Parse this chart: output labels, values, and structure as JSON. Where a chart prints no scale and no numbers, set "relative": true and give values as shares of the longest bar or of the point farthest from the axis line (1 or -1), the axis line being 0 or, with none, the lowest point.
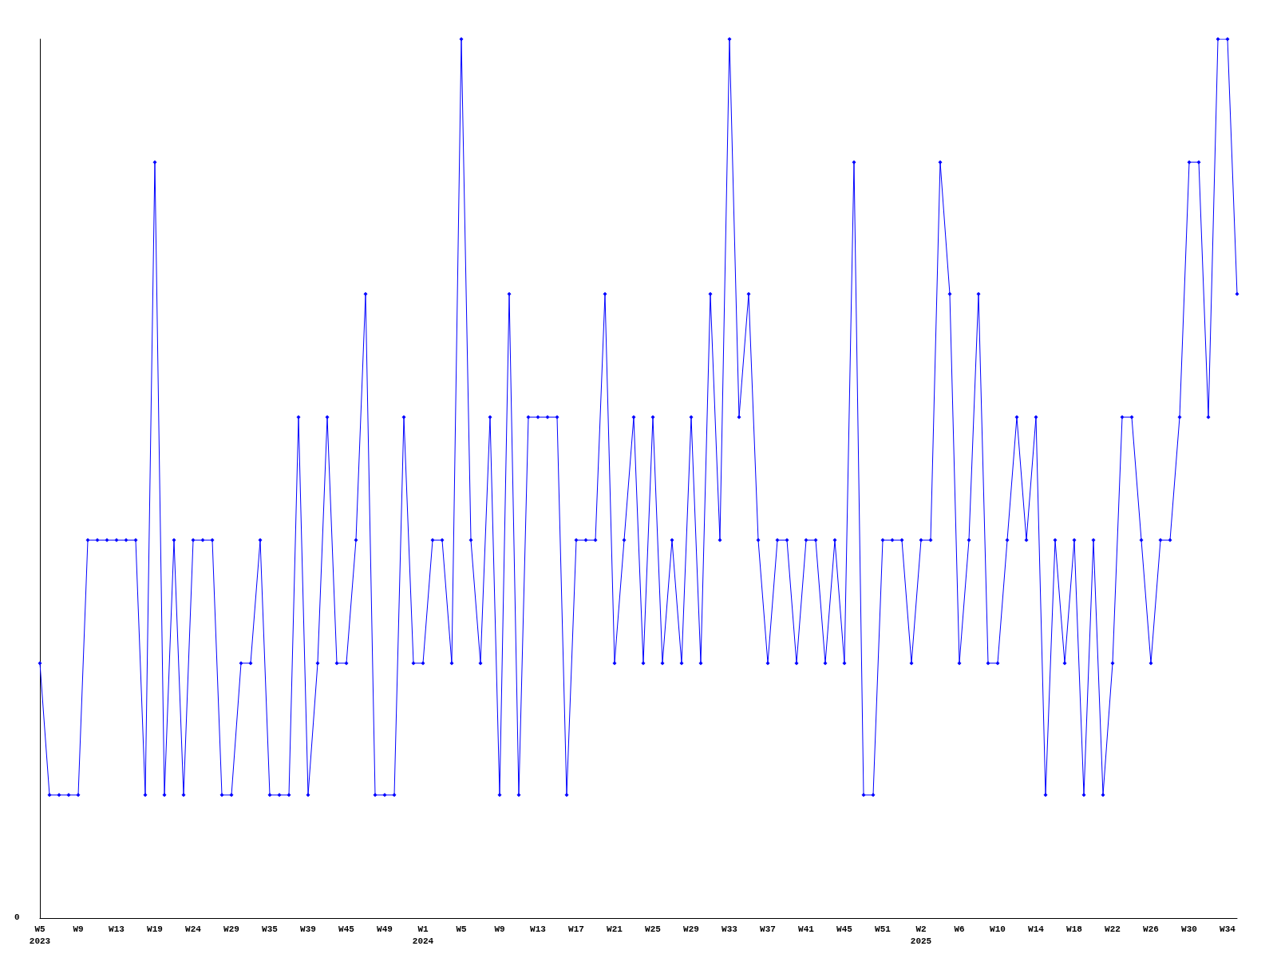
{
  "chart_data": {
    "type": "line",
    "relative": true,
    "categories": [
      "W5\n2023",
      null,
      null,
      null,
      "W9",
      null,
      null,
      null,
      "W13",
      null,
      null,
      null,
      "W19",
      null,
      null,
      null,
      "W24",
      null,
      null,
      null,
      "W29",
      null,
      null,
      null,
      "W35",
      null,
      null,
      null,
      "W39",
      null,
      null,
      null,
      "W45",
      null,
      null,
      null,
      "W49",
      null,
      null,
      null,
      "W1\n2024",
      null,
      null,
      null,
      "W5",
      null,
      null,
      null,
      "W9",
      null,
      null,
      null,
      "W13",
      null,
      null,
      null,
      "W17",
      null,
      null,
      null,
      "W21",
      null,
      null,
      null,
      "W25",
      null,
      null,
      null,
      "W29",
      null,
      null,
      null,
      "W33",
      null,
      null,
      null,
      "W37",
      null,
      null,
      null,
      "W41",
      null,
      null,
      null,
      "W45",
      null,
      null,
      null,
      "W51",
      null,
      null,
      null,
      "W2\n2025",
      null,
      null,
      null,
      "W6",
      null,
      null,
      null,
      "W10",
      null,
      null,
      null,
      "W14",
      null,
      null,
      null,
      "W18",
      null,
      null,
      null,
      "W22",
      null,
      null,
      null,
      "W26",
      null,
      null,
      null,
      "W30",
      null,
      null,
      null,
      "W34",
      null
    ],
    "series": [
      {
        "color": "#0000ff",
        "values": [
          0.29,
          0.14,
          0.14,
          0.14,
          0.14,
          0.43,
          0.43,
          0.43,
          0.43,
          0.43,
          0.43,
          0.14,
          0.86,
          0.14,
          0.43,
          0.14,
          0.43,
          0.43,
          0.43,
          0.14,
          0.14,
          0.29,
          0.29,
          0.43,
          0.14,
          0.14,
          0.14,
          0.57,
          0.14,
          0.29,
          0.57,
          0.29,
          0.29,
          0.43,
          0.71,
          0.14,
          0.14,
          0.14,
          0.57,
          0.29,
          0.29,
          0.43,
          0.43,
          0.29,
          1,
          0.43,
          0.29,
          0.57,
          0.14,
          0.71,
          0.14,
          0.57,
          0.57,
          0.57,
          0.57,
          0.14,
          0.43,
          0.43,
          0.43,
          0.71,
          0.29,
          0.43,
          0.57,
          0.29,
          0.57,
          0.29,
          0.43,
          0.29,
          0.57,
          0.29,
          0.71,
          0.43,
          1,
          0.57,
          0.71,
          0.43,
          0.29,
          0.43,
          0.43,
          0.29,
          0.43,
          0.43,
          0.29,
          0.43,
          0.29,
          0.86,
          0.14,
          0.14,
          0.43,
          0.43,
          0.43,
          0.29,
          0.43,
          0.43,
          0.86,
          0.71,
          0.29,
          0.43,
          0.71,
          0.29,
          0.29,
          0.43,
          0.57,
          0.43,
          0.57,
          0.14,
          0.43,
          0.29,
          0.43,
          0.14,
          0.43,
          0.14,
          0.29,
          0.57,
          0.57,
          0.43,
          0.29,
          0.43,
          0.43,
          0.57,
          0.86,
          0.86,
          0.57,
          1,
          1,
          0.71
        ]
      }
    ],
    "annotations": [
      "0"
    ],
    "marker": "diamond",
    "line_style": "solid",
    "grid": false
  }
}
